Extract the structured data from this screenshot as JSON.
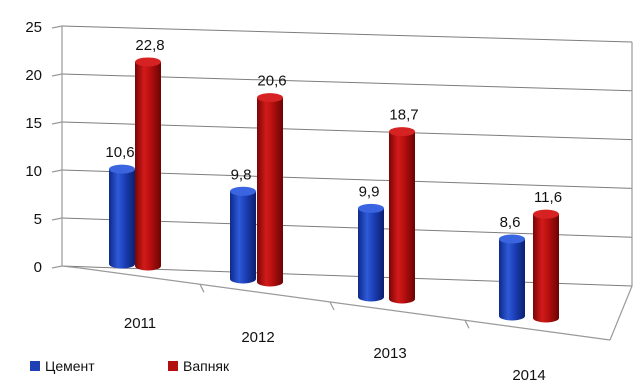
{
  "chart_data": {
    "type": "bar",
    "categories": [
      "2011",
      "2012",
      "2013",
      "2014"
    ],
    "series": [
      {
        "name": "Цемент",
        "values": [
          10.6,
          9.8,
          9.9,
          8.6
        ],
        "data_labels": [
          "10,6",
          "9,8",
          "9,9",
          "8,6"
        ],
        "color": "#1f3fb4"
      },
      {
        "name": "Вапняк",
        "values": [
          22.8,
          20.6,
          18.7,
          11.6
        ],
        "data_labels": [
          "22,8",
          "20,6",
          "18,7",
          "11,6"
        ],
        "color": "#b40f0f"
      }
    ],
    "ylim": [
      0,
      25
    ],
    "y_ticks": [
      "0",
      "5",
      "10",
      "15",
      "20",
      "25"
    ],
    "grid": true,
    "legend_position": "bottom-left",
    "style": "3d-cylinder"
  }
}
